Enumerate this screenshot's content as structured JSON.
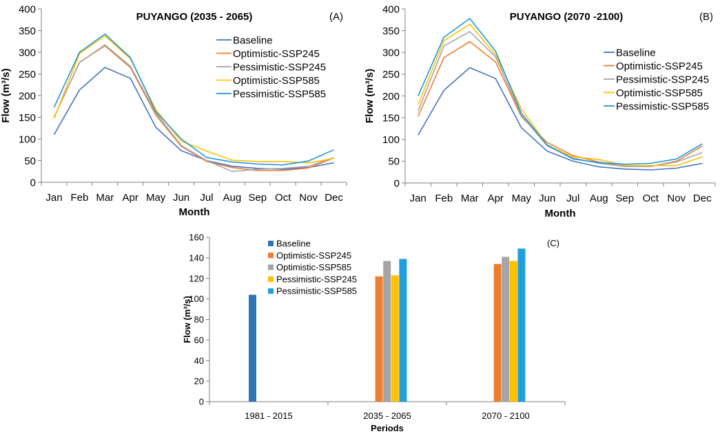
{
  "chart_data": [
    {
      "type": "line",
      "panel_label": "(A)",
      "title": "PUYANGO  (2035 - 2065)",
      "xlabel": "Month",
      "ylabel": "Flow (m³/s)",
      "ylim": [
        0,
        400
      ],
      "yticks": [
        0,
        50,
        100,
        150,
        200,
        250,
        300,
        350,
        400
      ],
      "grid": false,
      "legend_position": "right",
      "categories": [
        "Jan",
        "Feb",
        "Mar",
        "Apr",
        "May",
        "Jun",
        "Jul",
        "Aug",
        "Sep",
        "Oct",
        "Nov",
        "Dec"
      ],
      "series": [
        {
          "name": "Baseline",
          "color": "#4472c4",
          "values": [
            110,
            213,
            265,
            240,
            127,
            73,
            50,
            37,
            32,
            30,
            34,
            45
          ]
        },
        {
          "name": "Optimistic-SSP245",
          "color": "#ed7d31",
          "values": [
            150,
            277,
            315,
            265,
            155,
            83,
            48,
            34,
            27,
            27,
            33,
            56
          ]
        },
        {
          "name": "Pessimistic-SSP245",
          "color": "#a5a5a5",
          "values": [
            150,
            276,
            317,
            268,
            160,
            85,
            50,
            25,
            30,
            32,
            37,
            57
          ]
        },
        {
          "name": "Optimistic-SSP585",
          "color": "#ffc000",
          "values": [
            147,
            297,
            338,
            285,
            168,
            95,
            72,
            51,
            48,
            48,
            45,
            55
          ]
        },
        {
          "name": "Pessimistic-SSP585",
          "color": "#1f96d8",
          "values": [
            173,
            300,
            342,
            288,
            163,
            100,
            57,
            47,
            42,
            40,
            49,
            75
          ]
        }
      ]
    },
    {
      "type": "line",
      "panel_label": "(B)",
      "title": "PUYANGO  (2070 -2100)",
      "xlabel": "Month",
      "ylabel": "Flow (m³/s)",
      "ylim": [
        0,
        400
      ],
      "yticks": [
        0,
        50,
        100,
        150,
        200,
        250,
        300,
        350,
        400
      ],
      "grid": false,
      "legend_position": "right",
      "categories": [
        "Jan",
        "Feb",
        "Mar",
        "Apr",
        "May",
        "Jun",
        "Jul",
        "Aug",
        "Sep",
        "Oct",
        "Nov",
        "Dec"
      ],
      "series": [
        {
          "name": "Baseline",
          "color": "#4472c4",
          "values": [
            110,
            213,
            265,
            240,
            127,
            73,
            50,
            37,
            32,
            30,
            34,
            45
          ]
        },
        {
          "name": "Optimistic-SSP245",
          "color": "#ed7d31",
          "values": [
            153,
            288,
            325,
            278,
            152,
            93,
            63,
            48,
            38,
            38,
            50,
            85
          ]
        },
        {
          "name": "Pessimistic-SSP245",
          "color": "#a5a5a5",
          "values": [
            165,
            315,
            348,
            290,
            155,
            85,
            57,
            45,
            38,
            38,
            48,
            70
          ]
        },
        {
          "name": "Optimistic-SSP585",
          "color": "#ffc000",
          "values": [
            180,
            327,
            365,
            295,
            170,
            87,
            60,
            54,
            40,
            40,
            40,
            60
          ]
        },
        {
          "name": "Pessimistic-SSP585",
          "color": "#1f96d8",
          "values": [
            200,
            335,
            378,
            303,
            160,
            87,
            55,
            47,
            43,
            45,
            55,
            90
          ]
        }
      ]
    },
    {
      "type": "bar",
      "panel_label": "(C)",
      "title": "",
      "xlabel": "Periods",
      "ylabel": "Flow (m³/s)",
      "ylim": [
        0,
        160
      ],
      "yticks": [
        0,
        20,
        40,
        60,
        80,
        100,
        120,
        140,
        160
      ],
      "grid": false,
      "legend_position": "top-left",
      "categories": [
        "1981 - 2015",
        "2035 - 2065",
        "2070 - 2100"
      ],
      "series": [
        {
          "name": "Baseline",
          "color": "#2e75b6",
          "values": [
            104,
            null,
            null
          ]
        },
        {
          "name": "Optimistic-SSP245",
          "color": "#ed7d31",
          "values": [
            null,
            122,
            134
          ]
        },
        {
          "name": "Optimistic-SSP585",
          "color": "#a5a5a5",
          "values": [
            null,
            137,
            141
          ]
        },
        {
          "name": "Pessimistic-SSP245",
          "color": "#ffc000",
          "values": [
            null,
            123,
            137
          ]
        },
        {
          "name": "Pessimistic-SSP585",
          "color": "#1f9fe0",
          "values": [
            null,
            139,
            149
          ]
        }
      ]
    }
  ]
}
